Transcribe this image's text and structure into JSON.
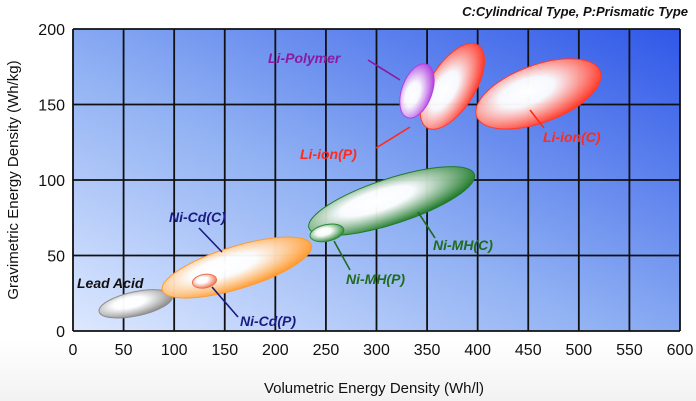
{
  "chart_data": {
    "type": "scatter",
    "title": "",
    "note": "C:Cylindrical Type, P:Prismatic Type",
    "xlabel": "Volumetric  Energy  Density (Wh/l)",
    "ylabel": "Gravimetric  Energy  Density (Wh/kg)",
    "xlim": [
      0,
      600
    ],
    "ylim": [
      0,
      200
    ],
    "x_ticks": [
      "0",
      "50",
      "100",
      "150",
      "200",
      "250",
      "300",
      "350",
      "400",
      "450",
      "500",
      "550",
      "600"
    ],
    "y_ticks": [
      "0",
      "50",
      "100",
      "150",
      "200"
    ],
    "grid": true,
    "series": [
      {
        "name": "Lead Acid",
        "color": "#8c8c8c",
        "label_color": "#111111",
        "cx": 62,
        "cy": 18,
        "rx": 37,
        "ry": 8,
        "angle_deg": -12
      },
      {
        "name": "Ni-Cd(C)",
        "color": "#ff9a2e",
        "label_color": "#1a1a80",
        "cx": 162,
        "cy": 42,
        "rx": 77,
        "ry": 14,
        "angle_deg": -17
      },
      {
        "name": "Ni-Cd(P)",
        "color": "#f07050",
        "label_color": "#1a1a80",
        "cx": 130,
        "cy": 33,
        "rx": 12,
        "ry": 4.5,
        "angle_deg": -10
      },
      {
        "name": "Ni-MH(C)",
        "color": "#1f7a2a",
        "label_color": "#1f6b1f",
        "cx": 315,
        "cy": 86,
        "rx": 86,
        "ry": 15,
        "angle_deg": -18
      },
      {
        "name": "Ni-MH(P)",
        "color": "#2a8a35",
        "label_color": "#1f6b1f",
        "cx": 251,
        "cy": 65,
        "rx": 17,
        "ry": 5.5,
        "angle_deg": -12
      },
      {
        "name": "Li-ion(P)",
        "color": "#ff3a2a",
        "label_color": "#ff2a1a",
        "cx": 375,
        "cy": 162,
        "rx": 48,
        "ry": 15,
        "angle_deg": -58
      },
      {
        "name": "Li-ion(C)",
        "color": "#ff3a2a",
        "label_color": "#ff2a1a",
        "cx": 460,
        "cy": 157,
        "rx": 65,
        "ry": 19,
        "angle_deg": -20
      },
      {
        "name": "Li-Polymer",
        "color": "#b040e0",
        "label_color": "#8a1aa0",
        "cx": 340,
        "cy": 159,
        "rx": 28,
        "ry": 10,
        "angle_deg": -70
      }
    ]
  }
}
